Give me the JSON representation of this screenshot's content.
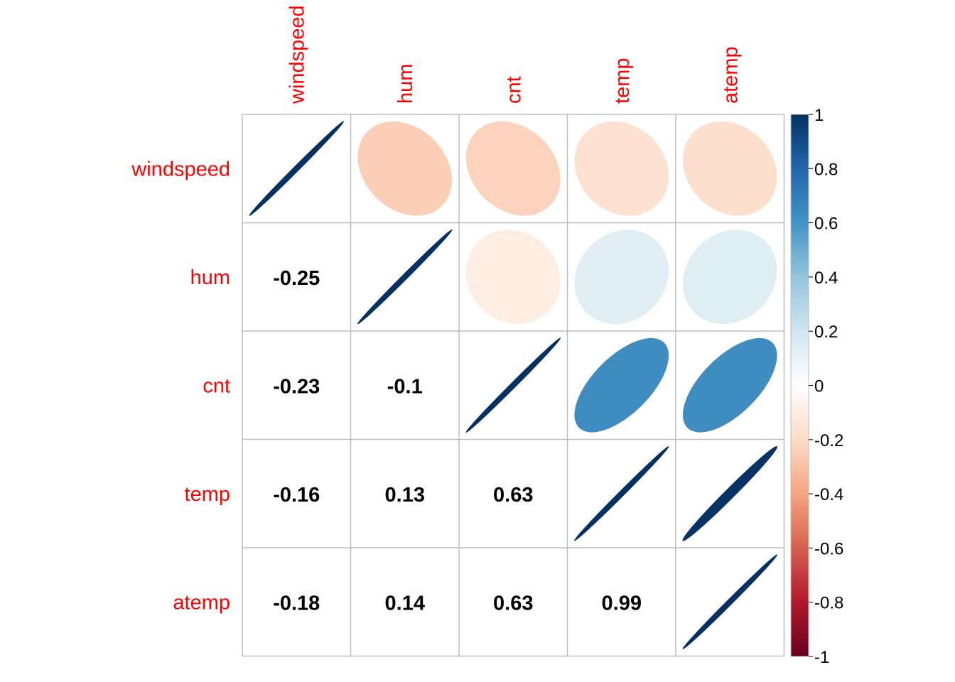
{
  "chart_data": {
    "type": "heatmap",
    "subtype": "correlation-matrix",
    "variables": [
      "windspeed",
      "hum",
      "cnt",
      "temp",
      "atemp"
    ],
    "matrix": [
      [
        1.0,
        -0.25,
        -0.23,
        -0.16,
        -0.18
      ],
      [
        -0.25,
        1.0,
        -0.1,
        0.13,
        0.14
      ],
      [
        -0.23,
        -0.1,
        1.0,
        0.63,
        0.63
      ],
      [
        -0.16,
        0.13,
        0.63,
        1.0,
        0.99
      ],
      [
        -0.18,
        0.14,
        0.63,
        0.99,
        1.0
      ]
    ],
    "lower_labels": [
      [
        "",
        "",
        "",
        "",
        ""
      ],
      [
        "-0.25",
        "",
        "",
        "",
        ""
      ],
      [
        "-0.23",
        "-0.1",
        "",
        "",
        ""
      ],
      [
        "-0.16",
        "0.13",
        "0.63",
        "",
        ""
      ],
      [
        "-0.18",
        "0.14",
        "0.63",
        "0.99",
        ""
      ]
    ],
    "upper_method": "ellipse",
    "lower_method": "number",
    "colorbar": {
      "range": [
        -1,
        1
      ],
      "ticks": [
        "-1",
        "-0.8",
        "-0.6",
        "-0.4",
        "-0.2",
        "0",
        "0.2",
        "0.4",
        "0.6",
        "0.8",
        "1"
      ],
      "colors": [
        "#67001F",
        "#B2182B",
        "#D6604D",
        "#F4A582",
        "#FDDBC7",
        "#FFFFFF",
        "#D1E5F0",
        "#92C5DE",
        "#4393C3",
        "#2166AC",
        "#053061"
      ]
    },
    "label_color": "#FF0000",
    "number_color": "#000000",
    "grid_color": "#BEBEBE"
  }
}
